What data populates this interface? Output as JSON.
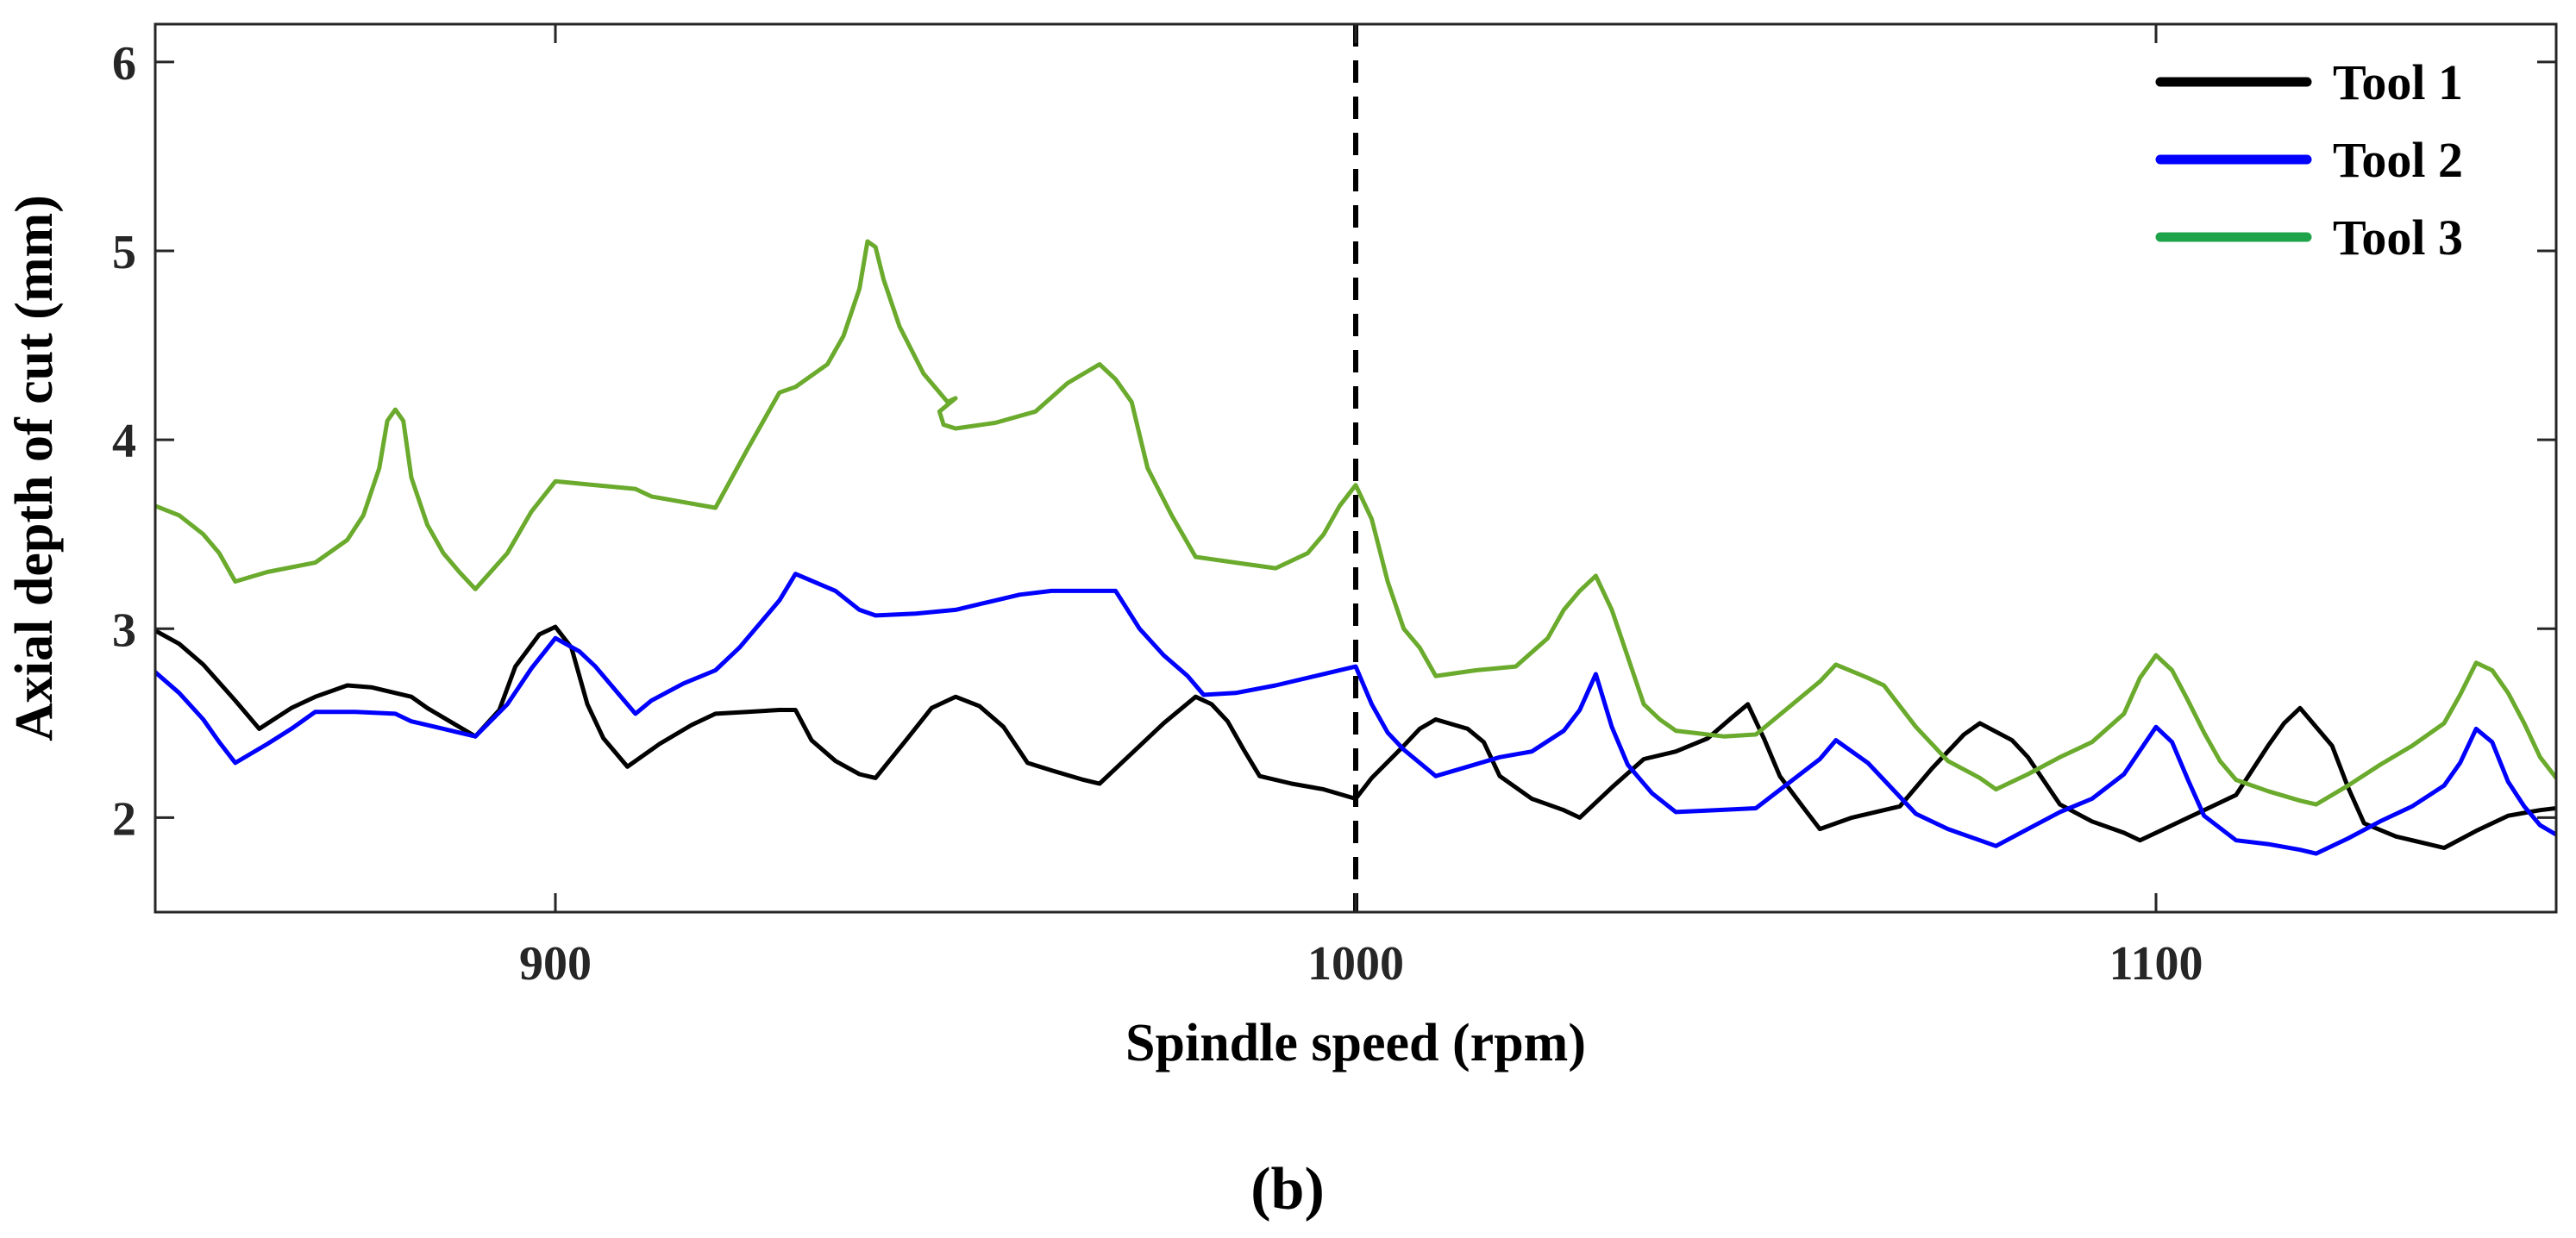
{
  "chart_data": {
    "type": "line",
    "xlabel": "Spindle speed (rpm)",
    "ylabel": "Axial depth of cut (mm)",
    "panel_label": "(b)",
    "xlim": [
      850,
      1150
    ],
    "ylim": [
      1.5,
      6.2
    ],
    "x_ticks": [
      900,
      1000,
      1100
    ],
    "x_tick_labels": [
      "900",
      "1000",
      "1100"
    ],
    "y_ticks": [
      2,
      3,
      4,
      5,
      6
    ],
    "y_tick_labels": [
      "2",
      "3",
      "4",
      "5",
      "6"
    ],
    "grid": false,
    "legend_position": "top-right",
    "reference_line": {
      "x": 1000,
      "style": "dashed",
      "color": "#000000"
    },
    "series": [
      {
        "name": "Tool 1",
        "color": "#000000",
        "points": [
          [
            850,
            2.99
          ],
          [
            853,
            2.92
          ],
          [
            856,
            2.81
          ],
          [
            860,
            2.62
          ],
          [
            863,
            2.47
          ],
          [
            867,
            2.58
          ],
          [
            870,
            2.64
          ],
          [
            874,
            2.7
          ],
          [
            877,
            2.69
          ],
          [
            880,
            2.66
          ],
          [
            882,
            2.64
          ],
          [
            884,
            2.58
          ],
          [
            888,
            2.48
          ],
          [
            890,
            2.43
          ],
          [
            893,
            2.57
          ],
          [
            895,
            2.8
          ],
          [
            898,
            2.97
          ],
          [
            900,
            3.01
          ],
          [
            902,
            2.9
          ],
          [
            904,
            2.6
          ],
          [
            906,
            2.42
          ],
          [
            909,
            2.27
          ],
          [
            913,
            2.39
          ],
          [
            917,
            2.49
          ],
          [
            920,
            2.55
          ],
          [
            924,
            2.56
          ],
          [
            928,
            2.57
          ],
          [
            930,
            2.57
          ],
          [
            932,
            2.41
          ],
          [
            935,
            2.3
          ],
          [
            938,
            2.23
          ],
          [
            940,
            2.21
          ],
          [
            944,
            2.42
          ],
          [
            947,
            2.58
          ],
          [
            950,
            2.64
          ],
          [
            953,
            2.59
          ],
          [
            956,
            2.48
          ],
          [
            959,
            2.29
          ],
          [
            962,
            2.25
          ],
          [
            966,
            2.2
          ],
          [
            968,
            2.18
          ],
          [
            972,
            2.34
          ],
          [
            976,
            2.5
          ],
          [
            980,
            2.64
          ],
          [
            982,
            2.6
          ],
          [
            984,
            2.51
          ],
          [
            986,
            2.36
          ],
          [
            988,
            2.22
          ],
          [
            992,
            2.18
          ],
          [
            996,
            2.15
          ],
          [
            1000,
            2.1
          ],
          [
            1002,
            2.21
          ],
          [
            1006,
            2.38
          ],
          [
            1008,
            2.47
          ],
          [
            1010,
            2.52
          ],
          [
            1014,
            2.47
          ],
          [
            1016,
            2.4
          ],
          [
            1018,
            2.22
          ],
          [
            1022,
            2.1
          ],
          [
            1026,
            2.04
          ],
          [
            1028,
            2.0
          ],
          [
            1032,
            2.16
          ],
          [
            1036,
            2.31
          ],
          [
            1040,
            2.35
          ],
          [
            1044,
            2.42
          ],
          [
            1047,
            2.53
          ],
          [
            1049,
            2.6
          ],
          [
            1051,
            2.42
          ],
          [
            1053,
            2.22
          ],
          [
            1056,
            2.05
          ],
          [
            1058,
            1.94
          ],
          [
            1062,
            2.0
          ],
          [
            1066,
            2.04
          ],
          [
            1068,
            2.06
          ],
          [
            1072,
            2.26
          ],
          [
            1076,
            2.44
          ],
          [
            1078,
            2.5
          ],
          [
            1082,
            2.41
          ],
          [
            1084,
            2.32
          ],
          [
            1088,
            2.07
          ],
          [
            1092,
            1.98
          ],
          [
            1096,
            1.92
          ],
          [
            1098,
            1.88
          ],
          [
            1102,
            1.96
          ],
          [
            1106,
            2.04
          ],
          [
            1110,
            2.12
          ],
          [
            1114,
            2.38
          ],
          [
            1116,
            2.5
          ],
          [
            1118,
            2.58
          ],
          [
            1122,
            2.38
          ],
          [
            1124,
            2.16
          ],
          [
            1126,
            1.97
          ],
          [
            1130,
            1.9
          ],
          [
            1134,
            1.86
          ],
          [
            1136,
            1.84
          ],
          [
            1140,
            1.93
          ],
          [
            1144,
            2.01
          ],
          [
            1148,
            2.04
          ],
          [
            1150,
            2.05
          ]
        ]
      },
      {
        "name": "Tool 2",
        "color": "#0000ff",
        "points": [
          [
            850,
            2.77
          ],
          [
            853,
            2.66
          ],
          [
            856,
            2.52
          ],
          [
            858,
            2.4
          ],
          [
            860,
            2.29
          ],
          [
            864,
            2.39
          ],
          [
            867,
            2.47
          ],
          [
            870,
            2.56
          ],
          [
            875,
            2.56
          ],
          [
            880,
            2.55
          ],
          [
            882,
            2.51
          ],
          [
            885,
            2.48
          ],
          [
            888,
            2.45
          ],
          [
            890,
            2.43
          ],
          [
            894,
            2.6
          ],
          [
            897,
            2.79
          ],
          [
            900,
            2.95
          ],
          [
            903,
            2.88
          ],
          [
            905,
            2.8
          ],
          [
            908,
            2.65
          ],
          [
            910,
            2.55
          ],
          [
            912,
            2.62
          ],
          [
            916,
            2.71
          ],
          [
            920,
            2.78
          ],
          [
            923,
            2.9
          ],
          [
            926,
            3.05
          ],
          [
            928,
            3.15
          ],
          [
            930,
            3.29
          ],
          [
            935,
            3.2
          ],
          [
            938,
            3.1
          ],
          [
            940,
            3.07
          ],
          [
            945,
            3.08
          ],
          [
            950,
            3.1
          ],
          [
            955,
            3.15
          ],
          [
            958,
            3.18
          ],
          [
            962,
            3.2
          ],
          [
            966,
            3.2
          ],
          [
            970,
            3.2
          ],
          [
            973,
            3.0
          ],
          [
            976,
            2.86
          ],
          [
            979,
            2.75
          ],
          [
            981,
            2.65
          ],
          [
            985,
            2.66
          ],
          [
            990,
            2.7
          ],
          [
            995,
            2.75
          ],
          [
            1000,
            2.8
          ],
          [
            1002,
            2.6
          ],
          [
            1004,
            2.45
          ],
          [
            1006,
            2.36
          ],
          [
            1010,
            2.22
          ],
          [
            1014,
            2.27
          ],
          [
            1018,
            2.32
          ],
          [
            1022,
            2.35
          ],
          [
            1026,
            2.46
          ],
          [
            1028,
            2.57
          ],
          [
            1030,
            2.76
          ],
          [
            1032,
            2.48
          ],
          [
            1034,
            2.28
          ],
          [
            1037,
            2.13
          ],
          [
            1040,
            2.03
          ],
          [
            1045,
            2.04
          ],
          [
            1050,
            2.05
          ],
          [
            1054,
            2.18
          ],
          [
            1058,
            2.31
          ],
          [
            1060,
            2.41
          ],
          [
            1064,
            2.29
          ],
          [
            1066,
            2.2
          ],
          [
            1070,
            2.02
          ],
          [
            1074,
            1.94
          ],
          [
            1078,
            1.88
          ],
          [
            1080,
            1.85
          ],
          [
            1084,
            1.94
          ],
          [
            1088,
            2.03
          ],
          [
            1092,
            2.1
          ],
          [
            1096,
            2.23
          ],
          [
            1100,
            2.48
          ],
          [
            1102,
            2.4
          ],
          [
            1104,
            2.2
          ],
          [
            1106,
            2.01
          ],
          [
            1110,
            1.88
          ],
          [
            1114,
            1.86
          ],
          [
            1118,
            1.83
          ],
          [
            1120,
            1.81
          ],
          [
            1124,
            1.89
          ],
          [
            1128,
            1.98
          ],
          [
            1132,
            2.06
          ],
          [
            1136,
            2.17
          ],
          [
            1138,
            2.29
          ],
          [
            1140,
            2.47
          ],
          [
            1142,
            2.4
          ],
          [
            1144,
            2.19
          ],
          [
            1146,
            2.06
          ],
          [
            1148,
            1.96
          ],
          [
            1150,
            1.91
          ]
        ]
      },
      {
        "name": "Tool 3",
        "color": "#6aaa2c",
        "legend_color": "#1fa34a",
        "points": [
          [
            850,
            3.65
          ],
          [
            853,
            3.6
          ],
          [
            856,
            3.5
          ],
          [
            858,
            3.4
          ],
          [
            860,
            3.25
          ],
          [
            864,
            3.3
          ],
          [
            870,
            3.35
          ],
          [
            874,
            3.47
          ],
          [
            876,
            3.6
          ],
          [
            878,
            3.85
          ],
          [
            879,
            4.1
          ],
          [
            880,
            4.16
          ],
          [
            881,
            4.1
          ],
          [
            882,
            3.8
          ],
          [
            884,
            3.55
          ],
          [
            886,
            3.4
          ],
          [
            888,
            3.3
          ],
          [
            890,
            3.21
          ],
          [
            894,
            3.4
          ],
          [
            897,
            3.62
          ],
          [
            900,
            3.78
          ],
          [
            905,
            3.76
          ],
          [
            910,
            3.74
          ],
          [
            912,
            3.7
          ],
          [
            916,
            3.67
          ],
          [
            920,
            3.64
          ],
          [
            924,
            3.95
          ],
          [
            928,
            4.25
          ],
          [
            930,
            4.28
          ],
          [
            934,
            4.4
          ],
          [
            936,
            4.55
          ],
          [
            938,
            4.8
          ],
          [
            939,
            5.05
          ],
          [
            940,
            5.02
          ],
          [
            941,
            4.85
          ],
          [
            943,
            4.6
          ],
          [
            946,
            4.35
          ],
          [
            949,
            4.2
          ],
          [
            950,
            4.22
          ],
          [
            948,
            4.15
          ],
          [
            948.5,
            4.08
          ],
          [
            950,
            4.06
          ],
          [
            955,
            4.09
          ],
          [
            960,
            4.15
          ],
          [
            964,
            4.3
          ],
          [
            968,
            4.4
          ],
          [
            970,
            4.32
          ],
          [
            972,
            4.2
          ],
          [
            974,
            3.85
          ],
          [
            977,
            3.6
          ],
          [
            980,
            3.38
          ],
          [
            985,
            3.35
          ],
          [
            990,
            3.32
          ],
          [
            994,
            3.4
          ],
          [
            996,
            3.5
          ],
          [
            998,
            3.65
          ],
          [
            1000,
            3.76
          ],
          [
            1002,
            3.58
          ],
          [
            1004,
            3.25
          ],
          [
            1006,
            3.0
          ],
          [
            1008,
            2.9
          ],
          [
            1010,
            2.75
          ],
          [
            1015,
            2.78
          ],
          [
            1020,
            2.8
          ],
          [
            1024,
            2.95
          ],
          [
            1026,
            3.1
          ],
          [
            1028,
            3.2
          ],
          [
            1030,
            3.28
          ],
          [
            1032,
            3.1
          ],
          [
            1034,
            2.85
          ],
          [
            1036,
            2.6
          ],
          [
            1038,
            2.52
          ],
          [
            1040,
            2.46
          ],
          [
            1046,
            2.43
          ],
          [
            1050,
            2.44
          ],
          [
            1054,
            2.58
          ],
          [
            1058,
            2.72
          ],
          [
            1060,
            2.81
          ],
          [
            1064,
            2.74
          ],
          [
            1066,
            2.7
          ],
          [
            1070,
            2.48
          ],
          [
            1074,
            2.3
          ],
          [
            1078,
            2.21
          ],
          [
            1080,
            2.15
          ],
          [
            1084,
            2.23
          ],
          [
            1088,
            2.32
          ],
          [
            1092,
            2.4
          ],
          [
            1096,
            2.55
          ],
          [
            1098,
            2.74
          ],
          [
            1100,
            2.86
          ],
          [
            1102,
            2.78
          ],
          [
            1104,
            2.62
          ],
          [
            1106,
            2.45
          ],
          [
            1108,
            2.3
          ],
          [
            1110,
            2.2
          ],
          [
            1114,
            2.14
          ],
          [
            1118,
            2.09
          ],
          [
            1120,
            2.07
          ],
          [
            1124,
            2.17
          ],
          [
            1128,
            2.28
          ],
          [
            1132,
            2.38
          ],
          [
            1136,
            2.5
          ],
          [
            1138,
            2.65
          ],
          [
            1140,
            2.82
          ],
          [
            1142,
            2.78
          ],
          [
            1144,
            2.66
          ],
          [
            1146,
            2.5
          ],
          [
            1148,
            2.32
          ],
          [
            1150,
            2.21
          ]
        ]
      }
    ]
  }
}
